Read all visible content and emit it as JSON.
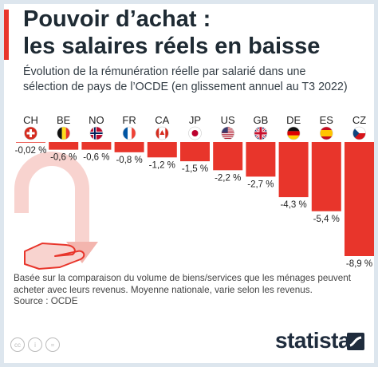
{
  "header": {
    "title_line1": "Pouvoir d’achat :",
    "title_line2": "les salaires réels en baisse",
    "subtitle_line1": "Évolution de la rémunération réelle par salarié dans une",
    "subtitle_line2": "sélection de pays de l’OCDE (en glissement annuel au T3 2022)"
  },
  "chart_data": {
    "type": "bar",
    "title": "Pouvoir d’achat : les salaires réels en baisse",
    "subtitle": "Évolution de la rémunération réelle par salarié dans une sélection de pays de l’OCDE (en glissement annuel au T3 2022)",
    "categories": [
      "CH",
      "BE",
      "NO",
      "FR",
      "CA",
      "JP",
      "US",
      "GB",
      "DE",
      "ES",
      "CZ"
    ],
    "values": [
      -0.02,
      -0.6,
      -0.6,
      -0.8,
      -1.2,
      -1.5,
      -2.2,
      -2.7,
      -4.3,
      -5.4,
      -8.9
    ],
    "value_labels": [
      "-0,02 %",
      "-0,6 %",
      "-0,6 %",
      "-0,8 %",
      "-1,2 %",
      "-1,5 %",
      "-2,2 %",
      "-2,7 %",
      "-4,3 %",
      "-5,4 %",
      "-8,9 %"
    ],
    "flags": [
      "flag-ch-icon",
      "flag-be-icon",
      "flag-no-icon",
      "flag-fr-icon",
      "flag-ca-icon",
      "flag-jp-icon",
      "flag-us-icon",
      "flag-gb-icon",
      "flag-de-icon",
      "flag-es-icon",
      "flag-cz-icon"
    ],
    "ylim": [
      -8.9,
      0
    ],
    "bar_color": "#e8352b"
  },
  "footer": {
    "note_line1": "Basée sur la comparaison du volume de biens/services que les ménages peuvent",
    "note_line2": "acheter avec leurs revenus. Moyenne nationale, varie selon les revenus.",
    "source": "Source : OCDE",
    "brand": "statista"
  },
  "colors": {
    "accent": "#e8352b",
    "title": "#1e2a33",
    "background": "#dde6ee",
    "illustration": "#f3b5ae"
  }
}
